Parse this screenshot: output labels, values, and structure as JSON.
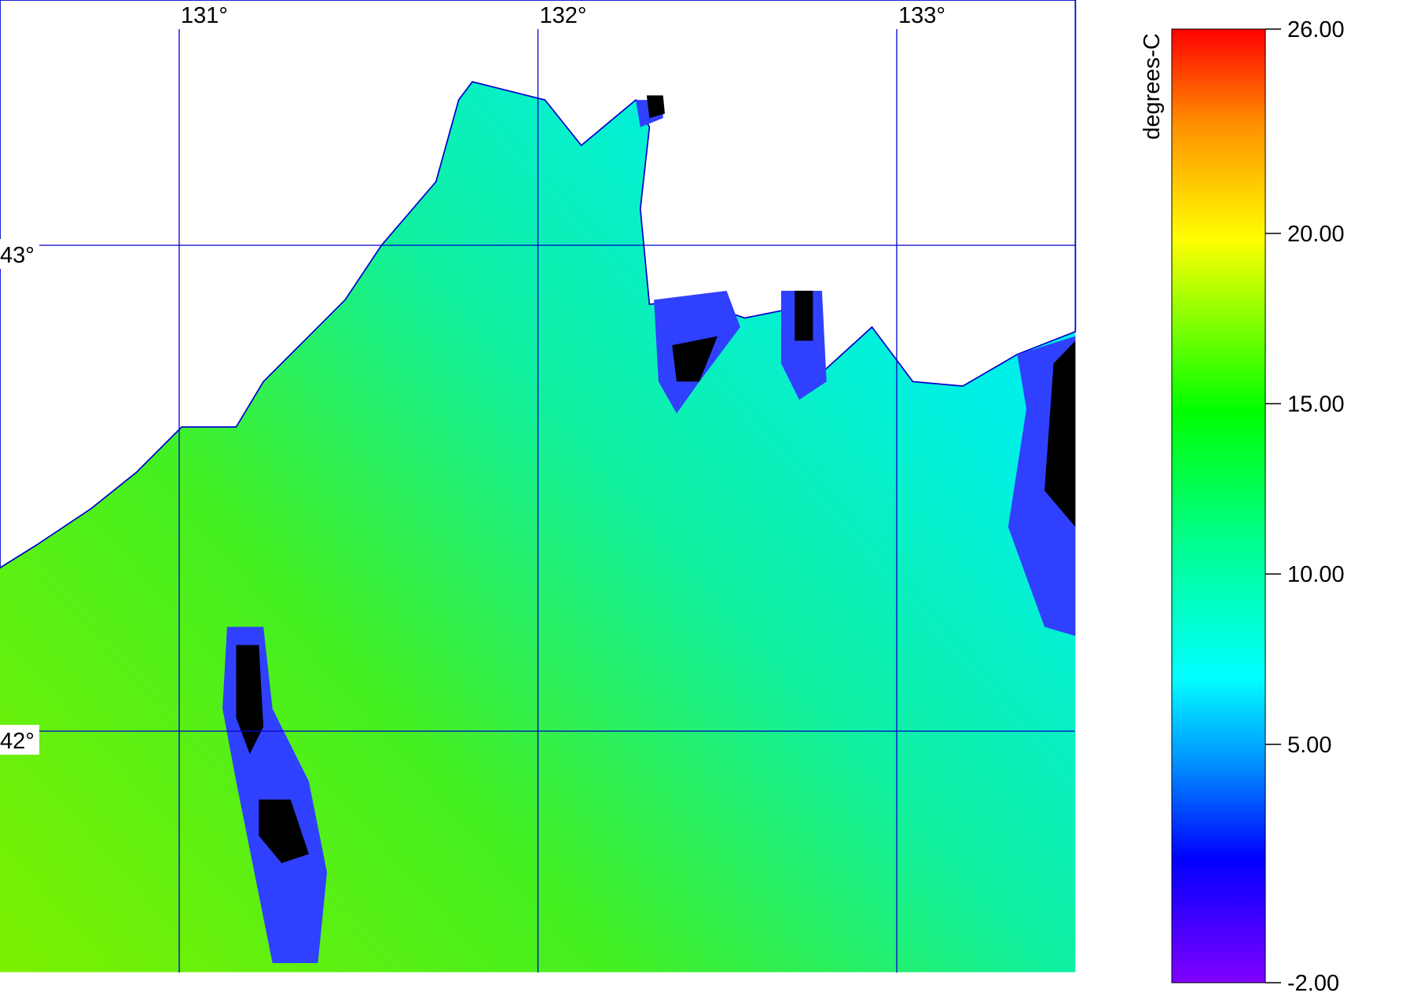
{
  "map": {
    "lon_lines": [
      {
        "value": 131,
        "label": "131°"
      },
      {
        "value": 132,
        "label": "132°"
      },
      {
        "value": 133,
        "label": "133°"
      }
    ],
    "lat_lines": [
      {
        "value": 43,
        "label": "43°"
      },
      {
        "value": 42,
        "label": "42°"
      }
    ],
    "colorbar": {
      "label": "degrees-C",
      "range": [
        -2,
        26
      ],
      "ticks": [
        {
          "value": 26,
          "label": "26.00"
        },
        {
          "value": 20,
          "label": "20.00"
        },
        {
          "value": 15,
          "label": "15.00"
        },
        {
          "value": 10,
          "label": "10.00"
        },
        {
          "value": 5,
          "label": "5.00"
        },
        {
          "value": -2,
          "label": "-2.00"
        }
      ]
    }
  }
}
